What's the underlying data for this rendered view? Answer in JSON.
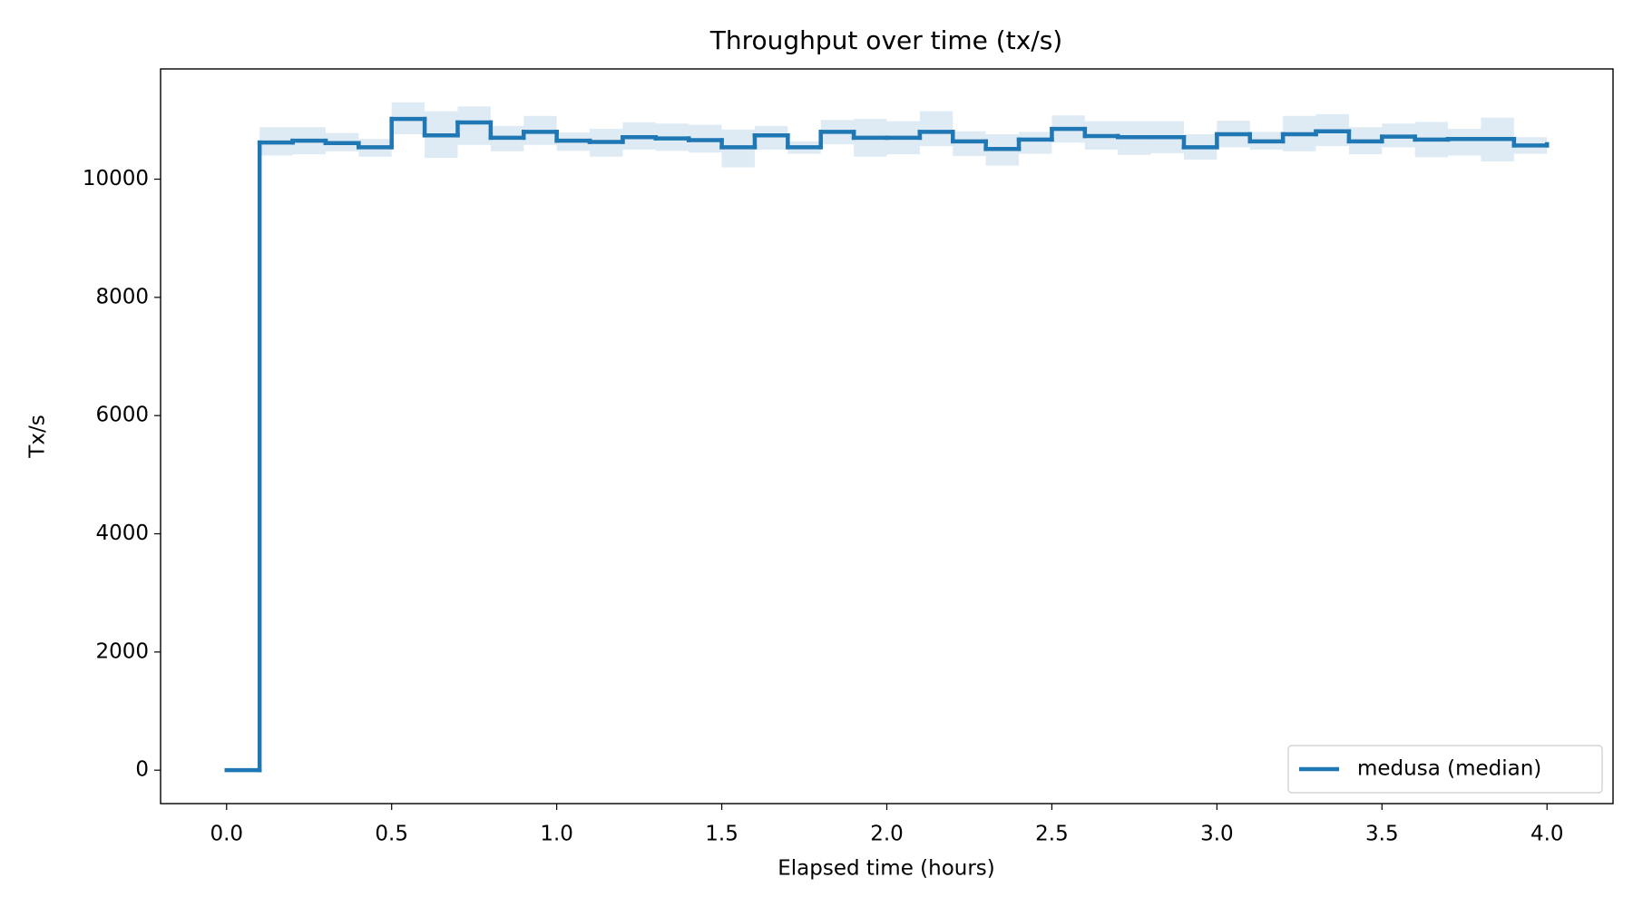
{
  "chart_data": {
    "type": "step",
    "title": "Throughput over time (tx/s)",
    "x_label": "Elapsed time (hours)",
    "y_label": "Tx/s",
    "x": [
      0.0,
      0.1,
      0.2,
      0.3,
      0.4,
      0.5,
      0.6,
      0.7,
      0.8,
      0.9,
      1.0,
      1.1,
      1.2,
      1.3,
      1.4,
      1.5,
      1.6,
      1.7,
      1.8,
      1.9,
      2.0,
      2.1,
      2.2,
      2.3,
      2.4,
      2.5,
      2.6,
      2.7,
      2.8,
      2.9,
      3.0,
      3.1,
      3.2,
      3.3,
      3.4,
      3.5,
      3.6,
      3.7,
      3.8,
      3.9,
      4.0
    ],
    "series": [
      {
        "name": "medusa (median)",
        "color": "#1f77b4",
        "values": [
          0,
          10620,
          10650,
          10610,
          10540,
          11020,
          10740,
          10960,
          10700,
          10800,
          10650,
          10630,
          10710,
          10690,
          10660,
          10540,
          10740,
          10540,
          10800,
          10700,
          10700,
          10800,
          10640,
          10510,
          10670,
          10850,
          10730,
          10710,
          10710,
          10540,
          10760,
          10640,
          10760,
          10810,
          10640,
          10720,
          10670,
          10680,
          10680,
          10570,
          10590
        ],
        "band_lower": [
          0,
          10400,
          10420,
          10470,
          10380,
          10760,
          10360,
          10580,
          10470,
          10580,
          10480,
          10380,
          10500,
          10480,
          10450,
          10200,
          10500,
          10430,
          10590,
          10380,
          10420,
          10560,
          10390,
          10230,
          10430,
          10620,
          10500,
          10410,
          10440,
          10330,
          10540,
          10500,
          10470,
          10560,
          10420,
          10540,
          10370,
          10400,
          10300,
          10430,
          10450
        ],
        "band_upper": [
          0,
          10880,
          10880,
          10780,
          10680,
          11300,
          11150,
          11230,
          10900,
          11070,
          10790,
          10850,
          10960,
          10940,
          10920,
          10840,
          10900,
          10640,
          11000,
          11020,
          10980,
          11150,
          10810,
          10760,
          10800,
          11080,
          10980,
          10980,
          10980,
          10760,
          10990,
          10800,
          11070,
          11100,
          10880,
          10940,
          10970,
          10850,
          11040,
          10710,
          10730
        ],
        "band_color": "#1f77b4"
      }
    ],
    "xlim": [
      -0.2,
      4.2
    ],
    "ylim": [
      -565,
      11865
    ],
    "xticks": [
      {
        "value": 0,
        "label": "0.0"
      },
      {
        "value": 0.5,
        "label": "0.5"
      },
      {
        "value": 1,
        "label": "1.0"
      },
      {
        "value": 1.5,
        "label": "1.5"
      },
      {
        "value": 2,
        "label": "2.0"
      },
      {
        "value": 2.5,
        "label": "2.5"
      },
      {
        "value": 3,
        "label": "3.0"
      },
      {
        "value": 3.5,
        "label": "3.5"
      },
      {
        "value": 4,
        "label": "4.0"
      }
    ],
    "yticks": [
      0,
      2000,
      4000,
      6000,
      8000,
      10000
    ],
    "legend": "lower right"
  }
}
